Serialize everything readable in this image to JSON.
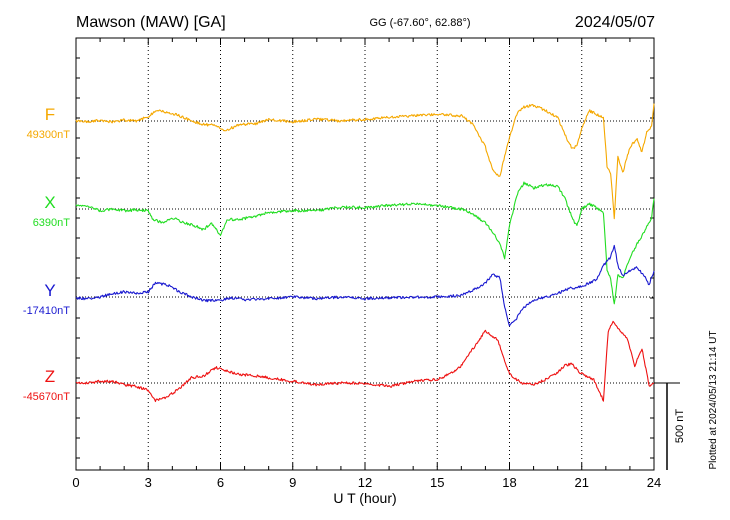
{
  "header": {
    "station": "Mawson (MAW)  [GA]",
    "coords": "GG (-67.60°,  62.88°)",
    "date": "2024/05/07"
  },
  "footer": {
    "plotted": "Plotted at 2024/05/13 21:14 UT"
  },
  "chart_data": {
    "type": "line",
    "title": "",
    "xlabel": "U T (hour)",
    "xlim": [
      0,
      24
    ],
    "x_ticks": [
      0,
      3,
      6,
      9,
      12,
      15,
      18,
      21,
      24
    ],
    "grid": true,
    "scale_bar": {
      "label": "500 nT",
      "value_nT": 500
    },
    "series": [
      {
        "name": "F",
        "baseline_label": "49300nT",
        "color": "#f5a800",
        "x": [
          0,
          0.5,
          1,
          1.5,
          2,
          2.5,
          3,
          3.3,
          3.8,
          4.3,
          4.8,
          5.3,
          5.8,
          6.2,
          6.8,
          7.5,
          8,
          9,
          10,
          11,
          12,
          12.5,
          13,
          14,
          15,
          16,
          16.5,
          17,
          17.3,
          17.6,
          17.8,
          18,
          18.3,
          18.6,
          19,
          19.5,
          20,
          20.3,
          20.6,
          20.8,
          21,
          21.3,
          21.6,
          21.9,
          22.05,
          22.2,
          22.35,
          22.5,
          22.7,
          23,
          23.3,
          23.5,
          23.7,
          23.9,
          24
        ],
        "y": [
          0,
          -5,
          5,
          -5,
          5,
          0,
          25,
          60,
          50,
          30,
          0,
          -20,
          -25,
          -55,
          -20,
          -15,
          10,
          -5,
          10,
          0,
          10,
          15,
          20,
          30,
          40,
          30,
          -20,
          -150,
          -280,
          -320,
          -200,
          -100,
          40,
          80,
          90,
          60,
          20,
          -80,
          -160,
          -140,
          -40,
          60,
          40,
          20,
          -260,
          -300,
          -560,
          -200,
          -300,
          -150,
          -100,
          -180,
          -60,
          -30,
          100
        ]
      },
      {
        "name": "X",
        "baseline_label": "6390nT",
        "color": "#22dd22",
        "x": [
          0,
          0.5,
          1,
          1.5,
          2,
          2.5,
          3,
          3.2,
          3.6,
          4,
          4.5,
          5,
          5.3,
          5.6,
          6,
          6.3,
          6.8,
          7.5,
          8,
          9,
          10,
          11,
          12,
          13,
          14,
          15,
          16,
          16.5,
          17,
          17.3,
          17.6,
          17.8,
          18,
          18.3,
          18.6,
          19,
          19.5,
          20,
          20.3,
          20.6,
          20.8,
          21,
          21.3,
          21.6,
          21.9,
          22.05,
          22.2,
          22.35,
          22.5,
          22.7,
          23,
          23.3,
          23.6,
          23.9,
          24
        ],
        "y": [
          20,
          15,
          -10,
          0,
          -10,
          -5,
          -10,
          -60,
          -80,
          -50,
          -80,
          -100,
          -120,
          -80,
          -150,
          -60,
          -60,
          -40,
          -20,
          -10,
          -10,
          10,
          10,
          20,
          30,
          20,
          0,
          -30,
          -80,
          -130,
          -200,
          -280,
          -100,
          80,
          150,
          120,
          140,
          130,
          60,
          -50,
          -100,
          0,
          30,
          10,
          -20,
          -350,
          -400,
          -550,
          -380,
          -400,
          -280,
          -200,
          -130,
          -50,
          60
        ]
      },
      {
        "name": "Y",
        "baseline_label": "-17410nT",
        "color": "#1a1ad0",
        "x": [
          0,
          0.5,
          1,
          1.5,
          2,
          2.5,
          3,
          3.3,
          3.8,
          4.3,
          4.8,
          5.3,
          6,
          6.5,
          7,
          8,
          9,
          10,
          11,
          12,
          13,
          14,
          15,
          16,
          16.5,
          17,
          17.3,
          17.6,
          17.8,
          18,
          18.3,
          18.6,
          19,
          19.5,
          20,
          20.5,
          21,
          21.3,
          21.6,
          21.9,
          22.2,
          22.35,
          22.5,
          22.7,
          23,
          23.3,
          23.6,
          23.8,
          24
        ],
        "y": [
          -5,
          -10,
          0,
          20,
          30,
          20,
          30,
          80,
          70,
          30,
          0,
          -20,
          -20,
          -5,
          -15,
          -10,
          0,
          -10,
          0,
          -10,
          -5,
          0,
          0,
          10,
          40,
          80,
          130,
          110,
          -60,
          -170,
          -120,
          -60,
          -20,
          0,
          20,
          50,
          60,
          80,
          100,
          180,
          230,
          300,
          180,
          120,
          150,
          170,
          120,
          70,
          150
        ]
      },
      {
        "name": "Z",
        "baseline_label": "-45670nT",
        "color": "#ee1111",
        "x": [
          0,
          0.5,
          1,
          1.5,
          2,
          2.5,
          3,
          3.3,
          3.8,
          4.3,
          4.8,
          5.3,
          5.8,
          6.2,
          6.8,
          7.5,
          8,
          9,
          10,
          11,
          12,
          13,
          14,
          15,
          15.5,
          16,
          16.5,
          17,
          17.5,
          18,
          18.5,
          19,
          19.5,
          20,
          20.3,
          20.6,
          20.9,
          21.2,
          21.5,
          21.9,
          22.1,
          22.3,
          22.6,
          22.9,
          23.2,
          23.5,
          23.8,
          24
        ],
        "y": [
          0,
          0,
          10,
          10,
          -10,
          -20,
          -40,
          -100,
          -80,
          -30,
          30,
          40,
          90,
          70,
          50,
          40,
          30,
          10,
          -10,
          0,
          0,
          -20,
          10,
          20,
          50,
          100,
          200,
          300,
          250,
          50,
          0,
          -10,
          20,
          60,
          100,
          110,
          60,
          40,
          20,
          -100,
          300,
          350,
          300,
          250,
          100,
          200,
          -20,
          0
        ]
      }
    ]
  }
}
